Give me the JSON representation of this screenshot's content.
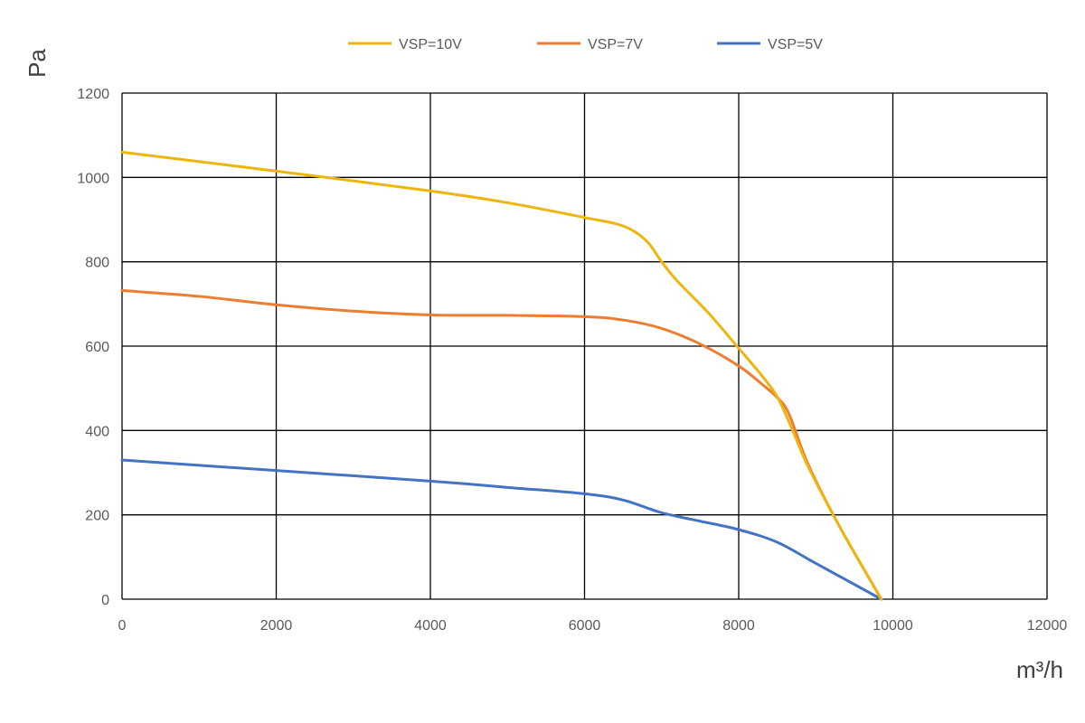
{
  "chart_data": {
    "type": "line",
    "xlabel": "m³/h",
    "ylabel": "Pa",
    "xlim": [
      0,
      12000
    ],
    "ylim": [
      0,
      1200
    ],
    "x_ticks": [
      0,
      2000,
      4000,
      6000,
      8000,
      10000,
      12000
    ],
    "y_ticks": [
      0,
      200,
      400,
      600,
      800,
      1000,
      1200
    ],
    "grid": true,
    "legend_position": "top",
    "series": [
      {
        "name": "VSP=10V",
        "color": "#ECB50F",
        "points": [
          [
            0,
            1060
          ],
          [
            2000,
            1015
          ],
          [
            4000,
            968
          ],
          [
            5000,
            940
          ],
          [
            6000,
            905
          ],
          [
            6500,
            885
          ],
          [
            6800,
            850
          ],
          [
            7000,
            800
          ],
          [
            7200,
            755
          ],
          [
            7600,
            680
          ],
          [
            8000,
            595
          ],
          [
            8300,
            530
          ],
          [
            8500,
            480
          ],
          [
            8700,
            400
          ],
          [
            8900,
            315
          ],
          [
            9300,
            175
          ],
          [
            9850,
            0
          ]
        ]
      },
      {
        "name": "VSP=7V",
        "color": "#ED7D31",
        "points": [
          [
            0,
            732
          ],
          [
            1000,
            718
          ],
          [
            2000,
            698
          ],
          [
            3000,
            683
          ],
          [
            4000,
            674
          ],
          [
            5000,
            673
          ],
          [
            6000,
            670
          ],
          [
            6500,
            662
          ],
          [
            7000,
            642
          ],
          [
            7500,
            605
          ],
          [
            8000,
            553
          ],
          [
            8300,
            510
          ],
          [
            8500,
            478
          ],
          [
            8650,
            440
          ],
          [
            8900,
            320
          ],
          [
            9300,
            175
          ],
          [
            9850,
            0
          ]
        ]
      },
      {
        "name": "VSP=5V",
        "color": "#4472C4",
        "points": [
          [
            0,
            330
          ],
          [
            2000,
            305
          ],
          [
            4000,
            280
          ],
          [
            5000,
            265
          ],
          [
            6000,
            250
          ],
          [
            6500,
            235
          ],
          [
            7000,
            205
          ],
          [
            7500,
            185
          ],
          [
            8000,
            165
          ],
          [
            8500,
            135
          ],
          [
            9000,
            85
          ],
          [
            9850,
            0
          ]
        ]
      }
    ]
  }
}
